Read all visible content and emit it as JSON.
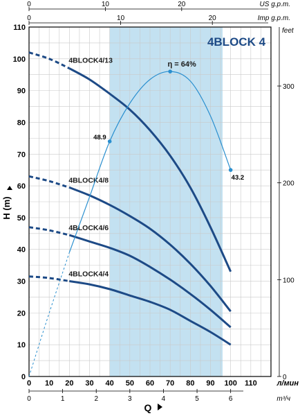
{
  "chart_data": {
    "type": "line",
    "title": "4BLOCK 4",
    "ylabel": "H (m)",
    "xlabel": "Q",
    "x_unit": "л/мин",
    "ylim": [
      0,
      110
    ],
    "xlim": [
      0,
      120
    ],
    "y_ticks": [
      "0",
      "10",
      "20",
      "30",
      "40",
      "50",
      "60",
      "70",
      "80",
      "90",
      "100",
      "110"
    ],
    "x_ticks": [
      "0",
      "10",
      "20",
      "30",
      "40",
      "50",
      "60",
      "70",
      "80",
      "90",
      "100",
      "110"
    ],
    "feet_label": "feet",
    "feet_ticks": [
      "0",
      "100",
      "200",
      "300"
    ],
    "feet_ticks_values": [
      0,
      100,
      200,
      300
    ],
    "m3h_label": "m³/ч",
    "m3h_ticks": [
      "0",
      "1",
      "2",
      "3",
      "4",
      "5",
      "6"
    ],
    "m3h_ticks_values": [
      0,
      1,
      2,
      3,
      4,
      5,
      6
    ],
    "usgpm_label": "US g.p.m.",
    "usgpm_ticks": [
      "0",
      "10",
      "20"
    ],
    "usgpm_ticks_values": [
      0,
      10,
      20
    ],
    "impgpm_label": "Imp g.p.m.",
    "impgpm_ticks": [
      "0",
      "10",
      "20"
    ],
    "impgpm_ticks_values": [
      0,
      10,
      20
    ],
    "operating_range": [
      40,
      96
    ],
    "colors": {
      "curve": "#1d4a86",
      "efficiency": "#2a8fcf",
      "band": "#b9dcef",
      "grid": "#c9c9c9"
    },
    "series": [
      {
        "name": "4BLOCK4/13",
        "dashed_x": [
          0,
          20
        ],
        "x": [
          0,
          10,
          20,
          30,
          40,
          50,
          60,
          70,
          80,
          90,
          100
        ],
        "y": [
          102,
          100,
          97,
          93.5,
          89,
          84,
          77.5,
          69.5,
          59.5,
          47,
          33
        ]
      },
      {
        "name": "4BLOCK4/8",
        "dashed_x": [
          0,
          20
        ],
        "x": [
          0,
          10,
          20,
          30,
          40,
          50,
          60,
          70,
          80,
          90,
          100
        ],
        "y": [
          63,
          61.5,
          59.5,
          57,
          54,
          50.5,
          46.5,
          41.5,
          35.5,
          28.5,
          20.5
        ]
      },
      {
        "name": "4BLOCK4/6",
        "dashed_x": [
          0,
          20
        ],
        "x": [
          0,
          10,
          20,
          30,
          40,
          50,
          60,
          70,
          80,
          90,
          100
        ],
        "y": [
          47,
          46,
          44.5,
          42.5,
          40.5,
          38,
          34.5,
          30.5,
          26,
          21,
          15.5
        ]
      },
      {
        "name": "4BLOCK4/4",
        "dashed_x": [
          0,
          20
        ],
        "x": [
          0,
          10,
          20,
          30,
          40,
          50,
          60,
          70,
          80,
          90,
          100
        ],
        "y": [
          31.5,
          31,
          30,
          29,
          27.5,
          25.5,
          23.5,
          21,
          17.5,
          14,
          10
        ]
      }
    ],
    "efficiency": {
      "label": "η = 64%",
      "dashed_x": [
        0,
        20
      ],
      "x": [
        0,
        10,
        20,
        30,
        40,
        50,
        60,
        70,
        80,
        90,
        100
      ],
      "y": [
        0,
        20,
        39,
        56.5,
        74,
        86,
        93.5,
        96,
        93,
        82,
        65
      ],
      "points": [
        {
          "x": 40,
          "y": 74,
          "label": "48.9"
        },
        {
          "x": 70,
          "y": 96,
          "label": ""
        },
        {
          "x": 100,
          "y": 65,
          "label": "43.2"
        }
      ]
    }
  }
}
